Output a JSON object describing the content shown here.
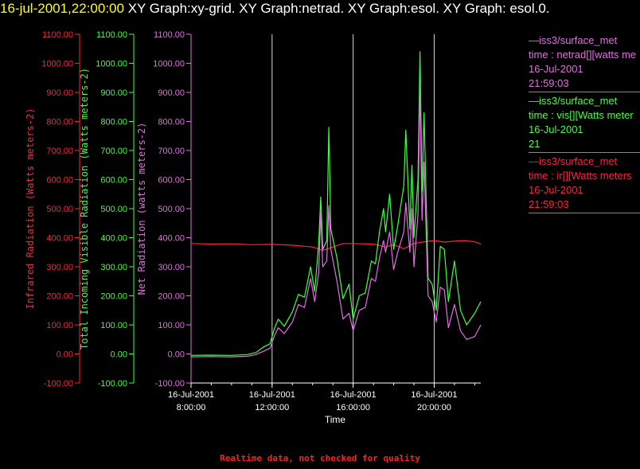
{
  "header": {
    "timestamp": "16-jul-2001,22:00:00",
    "title_rest": "XY Graph:xy-grid.  XY Graph:netrad.  XY Graph:esol.  XY Graph: esol.0."
  },
  "colors": {
    "background": "#000000",
    "infrared": "#ff2040",
    "visible": "#40ff40",
    "netrad": "#e070e0",
    "axis": "#ffffff",
    "timestamp": "#ffff00",
    "footer": "#ff2020"
  },
  "legend": [
    {
      "line1": "—iss3/surface_met",
      "line2": "time : netrad[][watts me",
      "line3": "16-Jul-2001",
      "line4": "21:59:03",
      "color": "#e070e0"
    },
    {
      "line1": "—iss3/surface_met",
      "line2": "time : vis[][Watts meter",
      "line3": "16-Jul-2001",
      "line4": "21",
      "color": "#40ff40"
    },
    {
      "line1": "—iss3/surface_met",
      "line2": "time : ir[][Watts meters",
      "line3": "16-Jul-2001",
      "line4": "21:59:03",
      "color": "#ff2040"
    }
  ],
  "footer": "Realtime data, not checked for quality",
  "chart_data": {
    "type": "line",
    "xlabel": "Time",
    "x_ticks": [
      {
        "x": 8,
        "line1": "16-Jul-2001",
        "line2": "8:00:00"
      },
      {
        "x": 12,
        "line1": "16-Jul-2001",
        "line2": "12:00:00"
      },
      {
        "x": 16,
        "line1": "16-Jul-2001",
        "line2": "16:00:00"
      },
      {
        "x": 20,
        "line1": "16-Jul-2001",
        "line2": "20:00:00"
      }
    ],
    "xlim": [
      8,
      22.3
    ],
    "ylim": [
      -100,
      1100
    ],
    "y_ticks": [
      "-100.00",
      "0.00",
      "100.00",
      "200.00",
      "300.00",
      "400.00",
      "500.00",
      "600.00",
      "700.00",
      "800.00",
      "900.00",
      "1000.00",
      "1100.00"
    ],
    "y_axes": [
      {
        "label": "Infrared Radiation (Watts meters-2)",
        "color": "#ff2040"
      },
      {
        "label": "Total Incoming Visible Radiation (Watts meters-2)",
        "color": "#40ff40"
      },
      {
        "label": "Net Radiation (watts meters-2)",
        "color": "#e070e0"
      }
    ],
    "grid": "vertical lines at major x ticks",
    "series": [
      {
        "name": "ir",
        "color": "#ff2040",
        "points": [
          [
            8,
            380
          ],
          [
            9,
            378
          ],
          [
            10,
            379
          ],
          [
            11,
            376
          ],
          [
            12,
            377
          ],
          [
            13,
            374
          ],
          [
            14,
            368
          ],
          [
            14.5,
            356
          ],
          [
            15,
            368
          ],
          [
            15.5,
            380
          ],
          [
            16,
            380
          ],
          [
            17,
            378
          ],
          [
            17.6,
            368
          ],
          [
            18,
            376
          ],
          [
            18.5,
            362
          ],
          [
            19,
            380
          ],
          [
            19.5,
            386
          ],
          [
            20,
            390
          ],
          [
            20.5,
            385
          ],
          [
            21,
            388
          ],
          [
            21.5,
            390
          ],
          [
            22,
            386
          ],
          [
            22.3,
            378
          ]
        ]
      },
      {
        "name": "vis",
        "color": "#40ff40",
        "points": [
          [
            8,
            -5
          ],
          [
            9,
            -4
          ],
          [
            10,
            -5
          ],
          [
            10.8,
            -2
          ],
          [
            11.2,
            5
          ],
          [
            11.6,
            25
          ],
          [
            11.9,
            35
          ],
          [
            12.1,
            85
          ],
          [
            12.3,
            120
          ],
          [
            12.6,
            95
          ],
          [
            13,
            145
          ],
          [
            13.3,
            205
          ],
          [
            13.6,
            195
          ],
          [
            13.9,
            300
          ],
          [
            14.1,
            215
          ],
          [
            14.3,
            380
          ],
          [
            14.4,
            540
          ],
          [
            14.5,
            360
          ],
          [
            14.7,
            390
          ],
          [
            14.8,
            780
          ],
          [
            14.9,
            430
          ],
          [
            15.2,
            330
          ],
          [
            15.5,
            190
          ],
          [
            15.8,
            240
          ],
          [
            16,
            120
          ],
          [
            16.3,
            200
          ],
          [
            16.6,
            210
          ],
          [
            16.9,
            320
          ],
          [
            17.1,
            310
          ],
          [
            17.3,
            420
          ],
          [
            17.5,
            500
          ],
          [
            17.6,
            420
          ],
          [
            17.8,
            550
          ],
          [
            18,
            360
          ],
          [
            18.2,
            440
          ],
          [
            18.5,
            580
          ],
          [
            18.6,
            770
          ],
          [
            18.8,
            430
          ],
          [
            18.9,
            650
          ],
          [
            19,
            400
          ],
          [
            19.2,
            600
          ],
          [
            19.3,
            1040
          ],
          [
            19.4,
            560
          ],
          [
            19.5,
            830
          ],
          [
            19.7,
            260
          ],
          [
            19.9,
            240
          ],
          [
            20.1,
            150
          ],
          [
            20.3,
            370
          ],
          [
            20.5,
            360
          ],
          [
            20.7,
            180
          ],
          [
            21,
            320
          ],
          [
            21.3,
            150
          ],
          [
            21.6,
            100
          ],
          [
            22,
            140
          ],
          [
            22.3,
            180
          ]
        ]
      },
      {
        "name": "netrad",
        "color": "#e070e0",
        "points": [
          [
            8,
            -10
          ],
          [
            9,
            -9
          ],
          [
            10,
            -10
          ],
          [
            10.8,
            -8
          ],
          [
            11.2,
            -2
          ],
          [
            11.6,
            10
          ],
          [
            11.9,
            20
          ],
          [
            12.1,
            60
          ],
          [
            12.3,
            90
          ],
          [
            12.6,
            70
          ],
          [
            13,
            110
          ],
          [
            13.3,
            170
          ],
          [
            13.6,
            160
          ],
          [
            13.9,
            260
          ],
          [
            14.1,
            180
          ],
          [
            14.3,
            280
          ],
          [
            14.4,
            490
          ],
          [
            14.5,
            300
          ],
          [
            14.7,
            320
          ],
          [
            14.8,
            510
          ],
          [
            14.9,
            360
          ],
          [
            15.2,
            250
          ],
          [
            15.5,
            120
          ],
          [
            15.8,
            140
          ],
          [
            16,
            80
          ],
          [
            16.3,
            150
          ],
          [
            16.6,
            160
          ],
          [
            16.9,
            260
          ],
          [
            17.1,
            250
          ],
          [
            17.3,
            330
          ],
          [
            17.5,
            390
          ],
          [
            17.6,
            350
          ],
          [
            17.8,
            420
          ],
          [
            18,
            290
          ],
          [
            18.2,
            350
          ],
          [
            18.5,
            420
          ],
          [
            18.6,
            520
          ],
          [
            18.8,
            350
          ],
          [
            18.9,
            500
          ],
          [
            19,
            300
          ],
          [
            19.2,
            480
          ],
          [
            19.3,
            930
          ],
          [
            19.4,
            460
          ],
          [
            19.5,
            660
          ],
          [
            19.7,
            200
          ],
          [
            19.9,
            180
          ],
          [
            20.1,
            110
          ],
          [
            20.3,
            230
          ],
          [
            20.5,
            220
          ],
          [
            20.7,
            90
          ],
          [
            21,
            170
          ],
          [
            21.3,
            80
          ],
          [
            21.6,
            50
          ],
          [
            22,
            60
          ],
          [
            22.3,
            100
          ]
        ]
      }
    ]
  }
}
